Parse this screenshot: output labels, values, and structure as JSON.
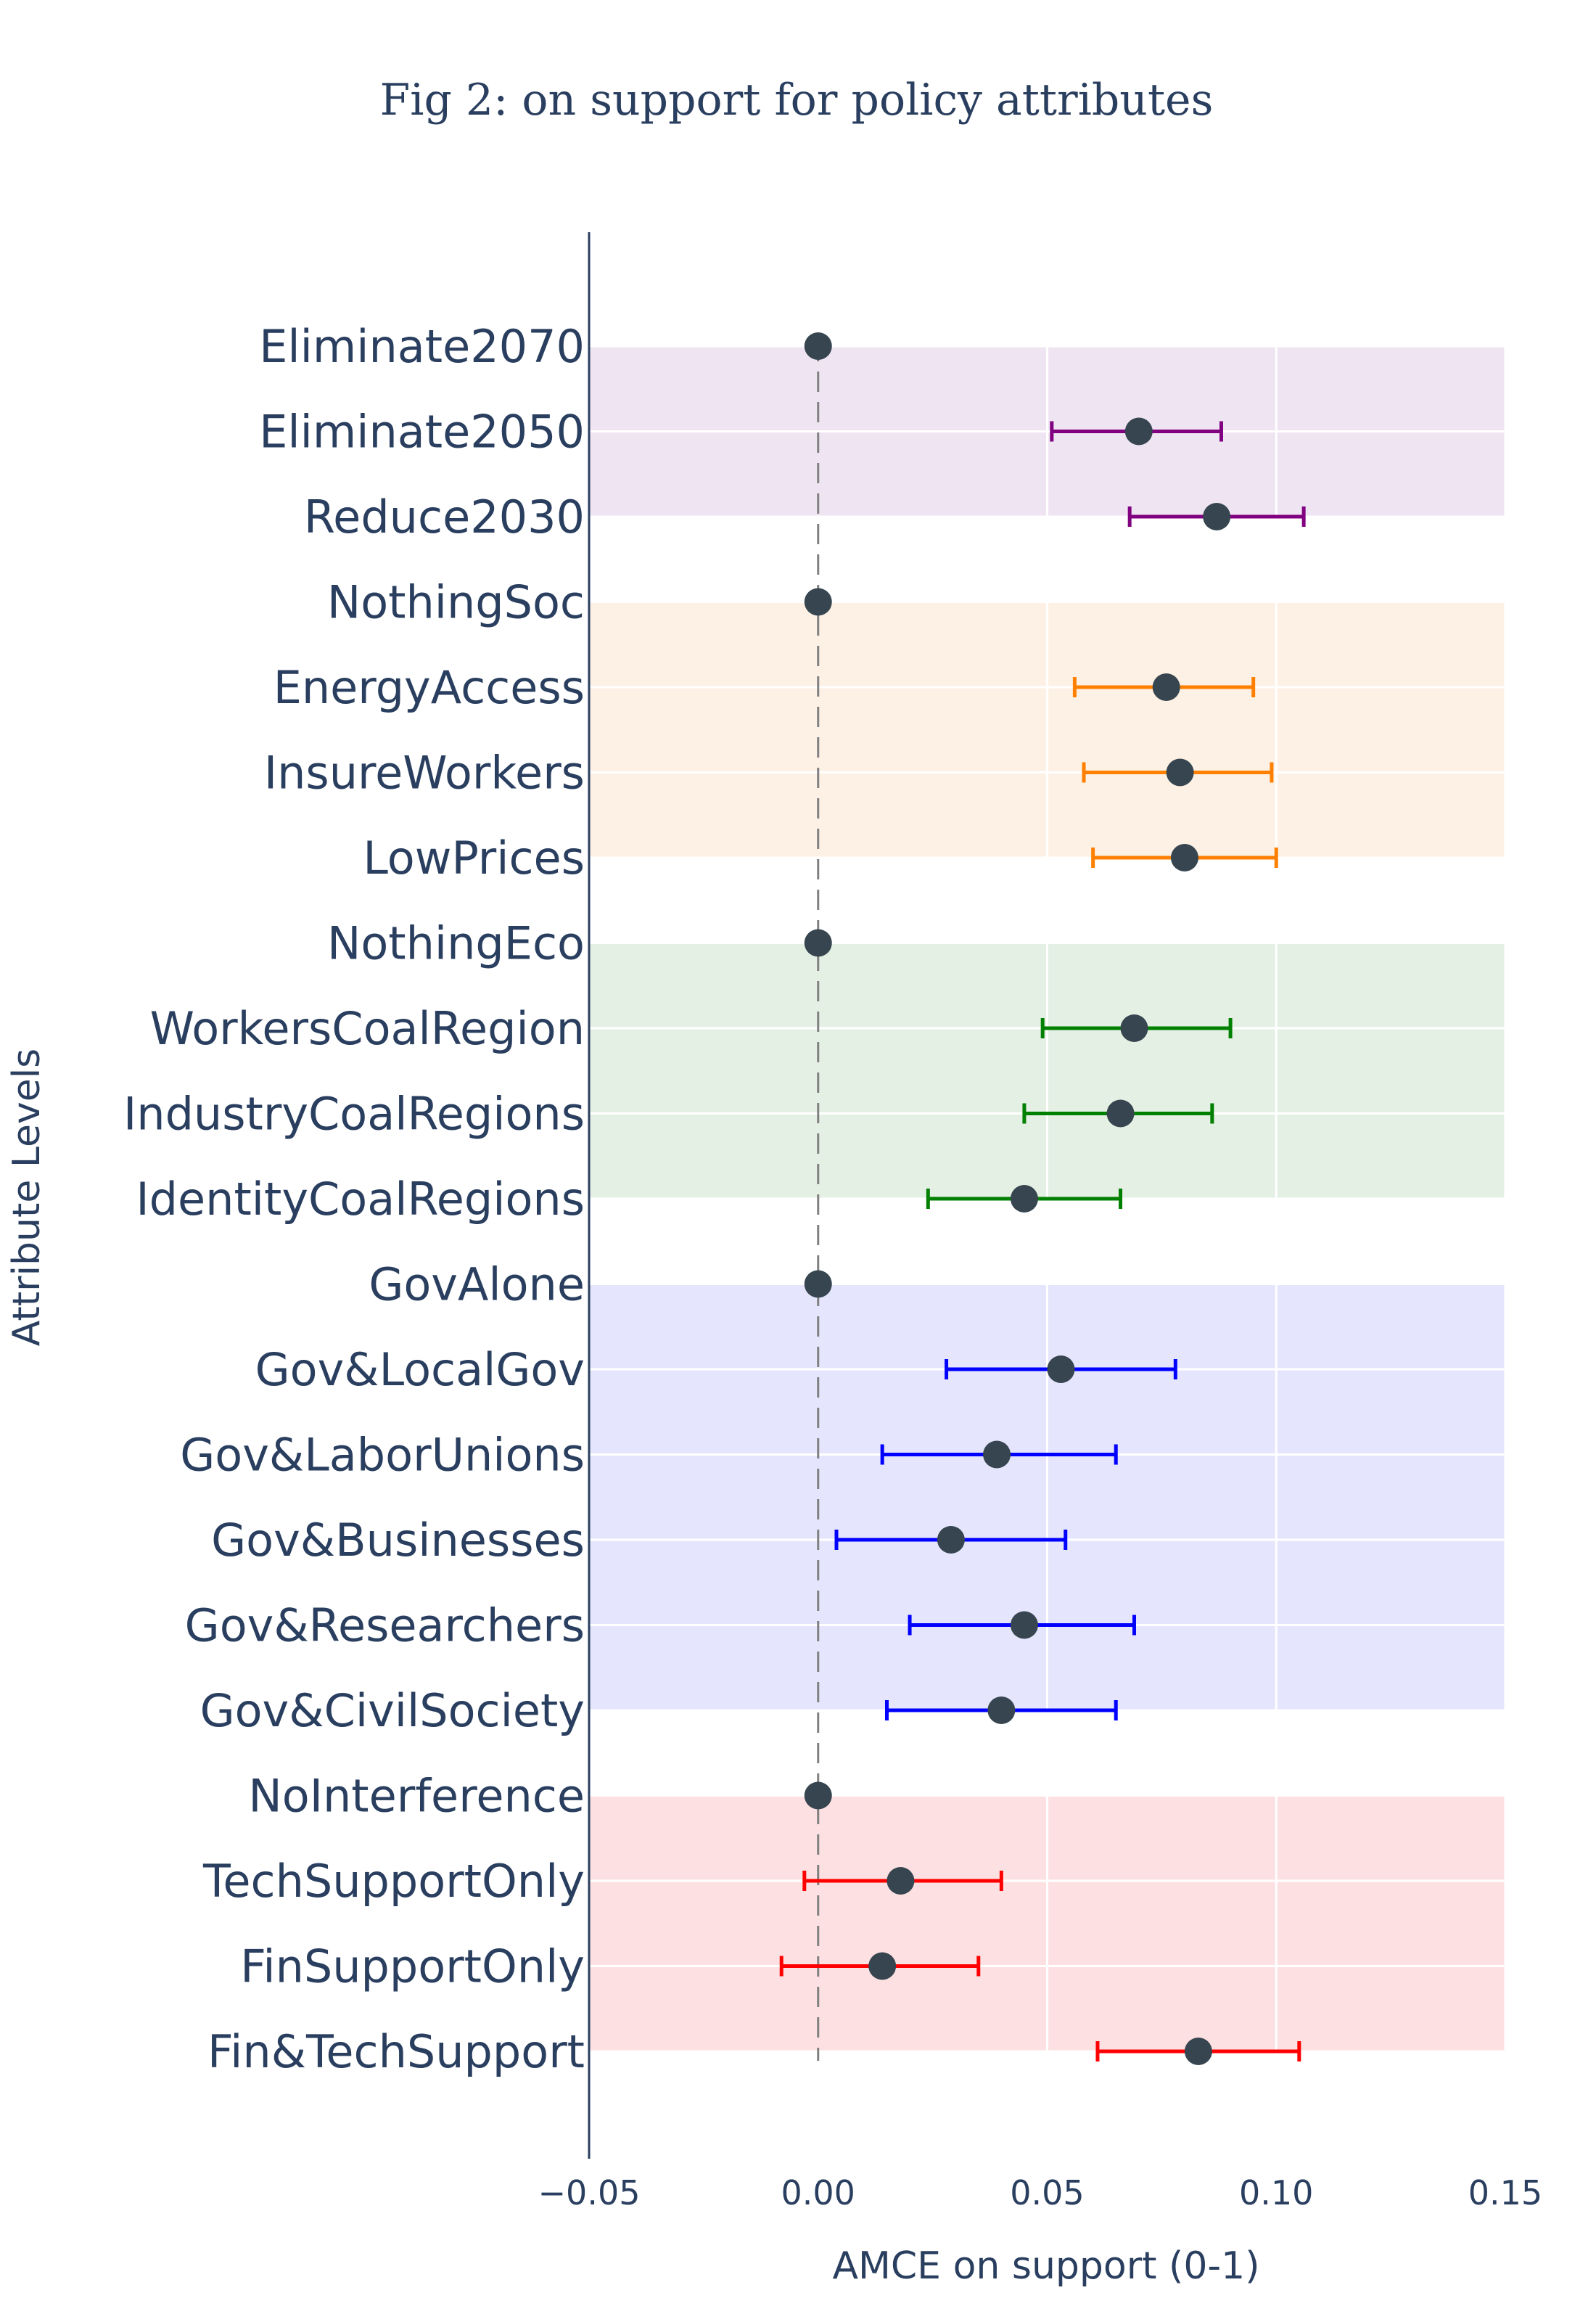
{
  "chart_data": {
    "type": "scatter",
    "title": "Fig 2: on support for policy attributes",
    "xlabel": "AMCE on support (0-1)",
    "ylabel": "Attribute Levels",
    "xlim": [
      -0.05,
      0.15
    ],
    "x_ticks": [
      "−0.05",
      "0.00",
      "0.05",
      "0.10",
      "0.15"
    ],
    "x_tick_values": [
      -0.05,
      0,
      0.05,
      0.1,
      0.15
    ],
    "grid": true,
    "reference_line": {
      "x": 0,
      "style": "dashed",
      "color": "#808080"
    },
    "marker_color": "#36454f",
    "series": [
      {
        "color": "#800080",
        "band_color": "#efe5f2",
        "points": [
          {
            "label": "Eliminate2070",
            "estimate": 0,
            "ci": null
          },
          {
            "label": "Eliminate2050",
            "estimate": 0.07,
            "ci": [
              0.051,
              0.088
            ]
          },
          {
            "label": "Reduce2030",
            "estimate": 0.087,
            "ci": [
              0.068,
              0.106
            ]
          }
        ]
      },
      {
        "color": "#ff8000",
        "band_color": "#fdf1e5",
        "points": [
          {
            "label": "NothingSoc",
            "estimate": 0,
            "ci": null
          },
          {
            "label": "EnergyAccess",
            "estimate": 0.076,
            "ci": [
              0.056,
              0.095
            ]
          },
          {
            "label": "InsureWorkers",
            "estimate": 0.079,
            "ci": [
              0.058,
              0.099
            ]
          },
          {
            "label": "LowPrices",
            "estimate": 0.08,
            "ci": [
              0.06,
              0.1
            ]
          }
        ]
      },
      {
        "color": "#008000",
        "band_color": "#e5f0e5",
        "points": [
          {
            "label": "NothingEco",
            "estimate": 0,
            "ci": null
          },
          {
            "label": "WorkersCoalRegion",
            "estimate": 0.069,
            "ci": [
              0.049,
              0.09
            ]
          },
          {
            "label": "IndustryCoalRegions",
            "estimate": 0.066,
            "ci": [
              0.045,
              0.086
            ]
          },
          {
            "label": "IdentityCoalRegions",
            "estimate": 0.045,
            "ci": [
              0.024,
              0.066
            ]
          }
        ]
      },
      {
        "color": "#0000ff",
        "band_color": "#e5e5fd",
        "points": [
          {
            "label": "GovAlone",
            "estimate": 0,
            "ci": null
          },
          {
            "label": "Gov&LocalGov",
            "estimate": 0.053,
            "ci": [
              0.028,
              0.078
            ]
          },
          {
            "label": "Gov&LaborUnions",
            "estimate": 0.039,
            "ci": [
              0.014,
              0.065
            ]
          },
          {
            "label": "Gov&Businesses",
            "estimate": 0.029,
            "ci": [
              0.004,
              0.054
            ]
          },
          {
            "label": "Gov&Researchers",
            "estimate": 0.045,
            "ci": [
              0.02,
              0.069
            ]
          },
          {
            "label": "Gov&CivilSociety",
            "estimate": 0.04,
            "ci": [
              0.015,
              0.065
            ]
          }
        ]
      },
      {
        "color": "#ff0000",
        "band_color": "#fde1e2",
        "points": [
          {
            "label": "NoInterference",
            "estimate": 0,
            "ci": null
          },
          {
            "label": "TechSupportOnly",
            "estimate": 0.018,
            "ci": [
              -0.003,
              0.04
            ]
          },
          {
            "label": "FinSupportOnly",
            "estimate": 0.014,
            "ci": [
              -0.008,
              0.035
            ]
          },
          {
            "label": "Fin&TechSupport",
            "estimate": 0.083,
            "ci": [
              0.061,
              0.105
            ]
          }
        ]
      }
    ]
  }
}
